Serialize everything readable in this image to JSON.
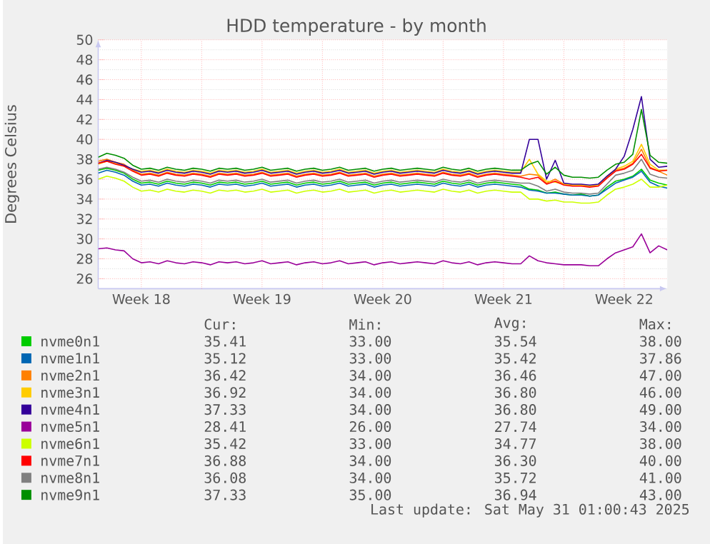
{
  "chart_data": {
    "type": "line",
    "title": "HDD temperature - by month",
    "ylabel": "Degrees Celsius",
    "categories": [
      null,
      null,
      null,
      null,
      null,
      "Week 18",
      null,
      null,
      null,
      null,
      null,
      null,
      null,
      null,
      null,
      null,
      null,
      null,
      null,
      "Week 19",
      null,
      null,
      null,
      null,
      null,
      null,
      null,
      null,
      null,
      null,
      null,
      null,
      null,
      "Week 20",
      null,
      null,
      null,
      null,
      null,
      null,
      null,
      null,
      null,
      null,
      null,
      null,
      null,
      "Week 21",
      null,
      null,
      null,
      null,
      null,
      null,
      null,
      null,
      null,
      null,
      null,
      null,
      null,
      "Week 22",
      null,
      null,
      null,
      null,
      null
    ],
    "ylim": [
      25,
      50
    ],
    "yticks": [
      26,
      28,
      30,
      32,
      34,
      36,
      38,
      40,
      42,
      44,
      46,
      48,
      50
    ],
    "grid": true,
    "legend": "bottom",
    "marker": "none",
    "line_style": "solid",
    "series": [
      {
        "name": "nvme0n1",
        "color": "#00cc00",
        "values": [
          36.9,
          37.1,
          36.9,
          36.6,
          36.0,
          35.6,
          35.7,
          35.5,
          35.8,
          35.6,
          35.5,
          35.7,
          35.6,
          35.4,
          35.7,
          35.6,
          35.7,
          35.5,
          35.6,
          35.8,
          35.5,
          35.6,
          35.7,
          35.4,
          35.6,
          35.7,
          35.5,
          35.6,
          35.8,
          35.5,
          35.6,
          35.7,
          35.4,
          35.6,
          35.7,
          35.5,
          35.6,
          35.7,
          35.6,
          35.5,
          35.8,
          35.6,
          35.5,
          35.7,
          35.4,
          35.6,
          35.7,
          35.6,
          35.5,
          35.4,
          35.0,
          34.9,
          34.6,
          34.7,
          34.5,
          34.4,
          34.5,
          34.3,
          34.4,
          35.2,
          35.8,
          36.0,
          36.3,
          37.0,
          35.9,
          35.6,
          35.4
        ]
      },
      {
        "name": "nvme1n1",
        "color": "#0066b3",
        "values": [
          36.6,
          36.9,
          36.7,
          36.4,
          35.8,
          35.4,
          35.5,
          35.3,
          35.6,
          35.4,
          35.3,
          35.5,
          35.4,
          35.2,
          35.5,
          35.4,
          35.5,
          35.3,
          35.4,
          35.6,
          35.3,
          35.4,
          35.5,
          35.2,
          35.4,
          35.5,
          35.3,
          35.4,
          35.6,
          35.3,
          35.4,
          35.5,
          35.2,
          35.4,
          35.5,
          35.3,
          35.4,
          35.5,
          35.4,
          35.3,
          35.6,
          35.4,
          35.3,
          35.5,
          35.2,
          35.4,
          35.5,
          35.4,
          35.3,
          35.2,
          34.9,
          34.8,
          34.6,
          34.6,
          34.5,
          34.4,
          34.4,
          34.3,
          34.4,
          35.0,
          35.6,
          35.9,
          36.2,
          36.8,
          35.7,
          35.3,
          35.1
        ]
      },
      {
        "name": "nvme2n1",
        "color": "#ff8000",
        "values": [
          37.8,
          38.0,
          37.7,
          37.5,
          36.9,
          36.5,
          36.6,
          36.4,
          36.7,
          36.5,
          36.4,
          36.6,
          36.5,
          36.3,
          36.6,
          36.5,
          36.6,
          36.4,
          36.5,
          36.7,
          36.4,
          36.5,
          36.6,
          36.3,
          36.5,
          36.6,
          36.4,
          36.5,
          36.7,
          36.4,
          36.5,
          36.6,
          36.3,
          36.5,
          36.6,
          36.4,
          36.5,
          36.6,
          36.5,
          36.4,
          36.7,
          36.5,
          36.4,
          36.6,
          36.3,
          36.5,
          36.6,
          36.5,
          36.4,
          36.3,
          36.5,
          36.4,
          35.6,
          36.0,
          35.5,
          35.4,
          35.4,
          35.3,
          35.4,
          36.2,
          36.9,
          37.1,
          37.6,
          39.0,
          37.2,
          36.8,
          36.4
        ]
      },
      {
        "name": "nvme3n1",
        "color": "#ffcc00",
        "values": [
          37.5,
          37.8,
          37.6,
          37.3,
          37.0,
          36.8,
          36.9,
          36.7,
          37.0,
          36.8,
          36.7,
          36.9,
          36.8,
          36.6,
          36.9,
          36.8,
          36.9,
          36.7,
          36.8,
          37.0,
          36.7,
          36.8,
          36.9,
          36.6,
          36.8,
          36.9,
          36.7,
          36.8,
          37.0,
          36.7,
          36.8,
          36.9,
          36.6,
          36.8,
          36.9,
          36.7,
          36.8,
          36.9,
          36.8,
          36.7,
          37.0,
          36.8,
          36.7,
          36.9,
          36.6,
          36.8,
          36.9,
          36.8,
          36.7,
          36.7,
          38.0,
          36.5,
          35.8,
          35.7,
          35.5,
          35.4,
          35.4,
          35.3,
          35.4,
          36.3,
          37.0,
          37.3,
          37.8,
          39.5,
          37.5,
          36.9,
          36.9
        ]
      },
      {
        "name": "nvme4n1",
        "color": "#330099",
        "values": [
          37.6,
          37.9,
          37.7,
          37.4,
          37.0,
          36.7,
          36.8,
          36.6,
          36.9,
          36.7,
          36.6,
          36.8,
          36.7,
          36.5,
          36.8,
          36.7,
          36.8,
          36.6,
          36.7,
          36.9,
          36.6,
          36.7,
          36.8,
          36.5,
          36.7,
          36.8,
          36.6,
          36.7,
          36.9,
          36.6,
          36.7,
          36.8,
          36.5,
          36.7,
          36.8,
          36.6,
          36.7,
          36.8,
          36.7,
          36.6,
          36.9,
          36.7,
          36.6,
          36.8,
          36.5,
          36.7,
          36.8,
          36.7,
          36.6,
          36.6,
          40.0,
          40.0,
          36.0,
          37.9,
          35.6,
          35.5,
          35.5,
          35.4,
          35.5,
          36.3,
          37.0,
          38.3,
          41.0,
          44.3,
          38.0,
          37.2,
          37.3
        ]
      },
      {
        "name": "nvme5n1",
        "color": "#990099",
        "values": [
          29.0,
          29.1,
          28.9,
          28.8,
          28.0,
          27.6,
          27.7,
          27.5,
          27.8,
          27.6,
          27.5,
          27.7,
          27.6,
          27.4,
          27.7,
          27.6,
          27.7,
          27.5,
          27.6,
          27.8,
          27.5,
          27.6,
          27.7,
          27.4,
          27.6,
          27.7,
          27.5,
          27.6,
          27.8,
          27.5,
          27.6,
          27.7,
          27.4,
          27.6,
          27.7,
          27.5,
          27.6,
          27.7,
          27.6,
          27.5,
          27.8,
          27.6,
          27.5,
          27.7,
          27.4,
          27.6,
          27.7,
          27.6,
          27.5,
          27.5,
          28.3,
          27.8,
          27.6,
          27.5,
          27.4,
          27.4,
          27.4,
          27.3,
          27.3,
          28.0,
          28.6,
          28.9,
          29.2,
          30.5,
          28.6,
          29.3,
          28.9
        ]
      },
      {
        "name": "nvme6n1",
        "color": "#ccff00",
        "values": [
          36.0,
          36.3,
          36.1,
          35.8,
          35.2,
          34.8,
          34.9,
          34.7,
          35.0,
          34.8,
          34.7,
          34.9,
          34.8,
          34.6,
          34.9,
          34.8,
          34.9,
          34.7,
          34.8,
          35.0,
          34.7,
          34.8,
          34.9,
          34.6,
          34.8,
          34.9,
          34.7,
          34.8,
          35.0,
          34.7,
          34.8,
          34.9,
          34.6,
          34.8,
          34.9,
          34.7,
          34.8,
          34.9,
          34.8,
          34.7,
          35.0,
          34.8,
          34.7,
          34.9,
          34.6,
          34.8,
          34.9,
          34.8,
          34.7,
          34.7,
          34.0,
          34.0,
          33.8,
          33.9,
          33.7,
          33.7,
          33.6,
          33.6,
          33.7,
          34.4,
          35.0,
          35.2,
          35.5,
          36.0,
          35.2,
          35.2,
          35.4
        ]
      },
      {
        "name": "nvme7n1",
        "color": "#ff0000",
        "values": [
          37.6,
          37.8,
          37.5,
          37.3,
          36.8,
          36.4,
          36.5,
          36.3,
          36.6,
          36.4,
          36.3,
          36.5,
          36.4,
          36.2,
          36.5,
          36.4,
          36.5,
          36.3,
          36.4,
          36.6,
          36.3,
          36.4,
          36.5,
          36.2,
          36.4,
          36.5,
          36.3,
          36.4,
          36.6,
          36.3,
          36.4,
          36.5,
          36.2,
          36.4,
          36.5,
          36.3,
          36.4,
          36.5,
          36.4,
          36.3,
          36.6,
          36.4,
          36.3,
          36.5,
          36.2,
          36.4,
          36.5,
          36.4,
          36.3,
          36.2,
          36.0,
          36.2,
          35.5,
          35.8,
          35.4,
          35.3,
          35.3,
          35.2,
          35.3,
          36.1,
          36.8,
          37.0,
          37.5,
          38.5,
          37.1,
          36.8,
          36.9
        ]
      },
      {
        "name": "nvme8n1",
        "color": "#808080",
        "values": [
          37.0,
          37.2,
          37.0,
          36.7,
          36.2,
          35.8,
          35.9,
          35.7,
          36.0,
          35.8,
          35.7,
          35.9,
          35.8,
          35.6,
          35.9,
          35.8,
          35.9,
          35.7,
          35.8,
          36.0,
          35.7,
          35.8,
          35.9,
          35.6,
          35.8,
          35.9,
          35.7,
          35.8,
          36.0,
          35.7,
          35.8,
          35.9,
          35.6,
          35.8,
          35.9,
          35.7,
          35.8,
          35.9,
          35.8,
          35.7,
          36.0,
          35.8,
          35.7,
          35.9,
          35.6,
          35.8,
          35.9,
          35.8,
          35.7,
          35.6,
          35.6,
          35.3,
          34.8,
          35.0,
          34.7,
          34.6,
          34.6,
          34.5,
          34.6,
          35.5,
          36.4,
          36.6,
          36.9,
          38.0,
          36.5,
          36.2,
          36.1
        ]
      },
      {
        "name": "nvme9n1",
        "color": "#008f00",
        "values": [
          38.2,
          38.6,
          38.4,
          38.1,
          37.4,
          37.0,
          37.1,
          36.9,
          37.2,
          37.0,
          36.9,
          37.1,
          37.0,
          36.8,
          37.1,
          37.0,
          37.1,
          36.9,
          37.0,
          37.2,
          36.9,
          37.0,
          37.1,
          36.8,
          37.0,
          37.1,
          36.9,
          37.0,
          37.2,
          36.9,
          37.0,
          37.1,
          36.8,
          37.0,
          37.1,
          36.9,
          37.0,
          37.1,
          37.0,
          36.9,
          37.2,
          37.0,
          36.9,
          37.1,
          36.8,
          37.0,
          37.1,
          37.0,
          36.9,
          36.9,
          37.5,
          37.8,
          36.5,
          37.2,
          36.4,
          36.2,
          36.2,
          36.1,
          36.2,
          36.9,
          37.5,
          37.7,
          38.5,
          43.0,
          38.4,
          37.7,
          37.6
        ]
      }
    ],
    "annotations": [
      "Cur:",
      "Min:",
      "Avg:",
      "Max:",
      "35.41",
      "33.00",
      "35.54",
      "38.00",
      "35.12",
      "33.00",
      "35.42",
      "37.86",
      "36.42",
      "34.00",
      "36.46",
      "47.00",
      "36.92",
      "34.00",
      "36.80",
      "46.00",
      "37.33",
      "34.00",
      "36.80",
      "49.00",
      "28.41",
      "26.00",
      "27.74",
      "34.00",
      "35.42",
      "33.00",
      "34.77",
      "38.00",
      "36.88",
      "34.00",
      "36.30",
      "40.00",
      "36.08",
      "34.00",
      "35.72",
      "41.00",
      "37.33",
      "35.00",
      "36.94",
      "43.00",
      "Last update: Sat May 31 01:00:43 2025"
    ]
  }
}
